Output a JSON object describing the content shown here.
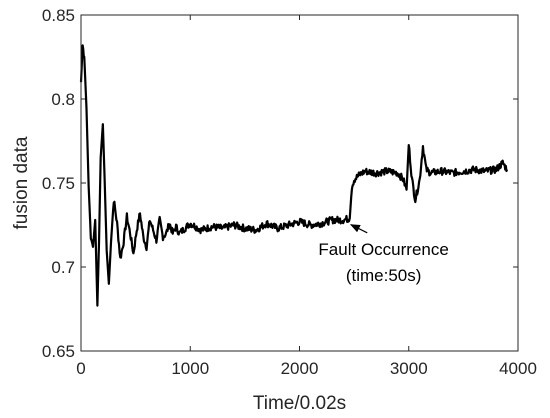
{
  "chart_data": {
    "type": "line",
    "title": "",
    "xlabel": "Time/0.02s",
    "ylabel": "fusion data",
    "xlim": [
      0,
      4000
    ],
    "ylim": [
      0.65,
      0.85
    ],
    "xticks": [
      0,
      1000,
      2000,
      3000,
      4000
    ],
    "yticks": [
      0.65,
      0.7,
      0.75,
      0.8,
      0.85
    ],
    "xtick_labels": [
      "0",
      "1000",
      "2000",
      "3000",
      "4000"
    ],
    "ytick_labels": [
      "0.65",
      "0.7",
      "0.75",
      "0.8",
      "0.85"
    ],
    "grid": false,
    "legend": "none",
    "line_color": "#000000",
    "series": [
      {
        "x": [
          0,
          15,
          30,
          50,
          70,
          90,
          110,
          130,
          150,
          165,
          180,
          200,
          215,
          235,
          255,
          275,
          300,
          330,
          360,
          390,
          420,
          450,
          480,
          510,
          540,
          570,
          600,
          630,
          660,
          690,
          720,
          750,
          780,
          810,
          840,
          870,
          900,
          950,
          1000,
          1100,
          1200,
          1300,
          1400,
          1500,
          1600,
          1700,
          1800,
          1900,
          2000,
          2100,
          2200,
          2300,
          2400,
          2460,
          2480,
          2500,
          2550,
          2600,
          2700,
          2800,
          2900,
          2950,
          2980,
          3000,
          3030,
          3060,
          3100,
          3130,
          3160,
          3200,
          3300,
          3400,
          3500,
          3600,
          3700,
          3800,
          3860,
          3900
        ],
        "y": [
          0.81,
          0.832,
          0.825,
          0.795,
          0.748,
          0.718,
          0.712,
          0.728,
          0.677,
          0.715,
          0.765,
          0.785,
          0.755,
          0.71,
          0.69,
          0.715,
          0.74,
          0.726,
          0.705,
          0.715,
          0.73,
          0.72,
          0.708,
          0.722,
          0.732,
          0.718,
          0.712,
          0.728,
          0.722,
          0.716,
          0.728,
          0.718,
          0.72,
          0.726,
          0.72,
          0.724,
          0.72,
          0.723,
          0.726,
          0.722,
          0.724,
          0.723,
          0.725,
          0.723,
          0.722,
          0.726,
          0.723,
          0.725,
          0.727,
          0.725,
          0.726,
          0.728,
          0.728,
          0.729,
          0.748,
          0.752,
          0.755,
          0.757,
          0.756,
          0.757,
          0.756,
          0.752,
          0.746,
          0.773,
          0.752,
          0.74,
          0.752,
          0.772,
          0.758,
          0.756,
          0.757,
          0.756,
          0.757,
          0.758,
          0.757,
          0.758,
          0.762,
          0.758
        ]
      }
    ],
    "annotation": {
      "line1": "Fault Occurrence",
      "line2": "(time:50s)",
      "target_x": 2470,
      "target_y": 0.727,
      "label_x": 2770,
      "label_y": 0.7025
    }
  }
}
